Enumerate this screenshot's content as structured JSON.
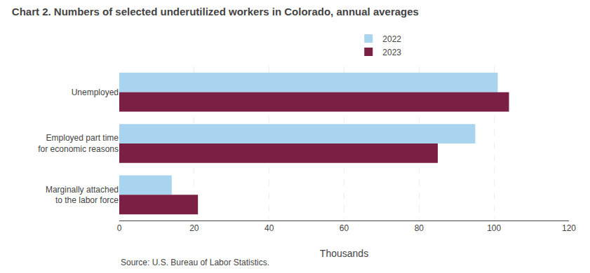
{
  "chart_data": {
    "type": "bar",
    "orientation": "horizontal",
    "title": "Chart 2. Numbers of selected underutilized workers in Colorado, annual averages",
    "categories": [
      "Marginally attached\nto the labor force",
      "Employed part time\nfor economic reasons",
      "Unemployed"
    ],
    "series": [
      {
        "name": "2022",
        "color": "#a8d4f0",
        "values": [
          14,
          95,
          101
        ]
      },
      {
        "name": "2023",
        "color": "#7b2045",
        "values": [
          21,
          85,
          104
        ]
      }
    ],
    "xlabel": "Thousands",
    "xlim": [
      0,
      120
    ],
    "xticks": [
      0,
      20,
      40,
      60,
      80,
      100,
      120
    ],
    "grid": true,
    "legend": "top",
    "annotations": [
      "Source: U.S. Bureau of Labor Statistics."
    ]
  }
}
